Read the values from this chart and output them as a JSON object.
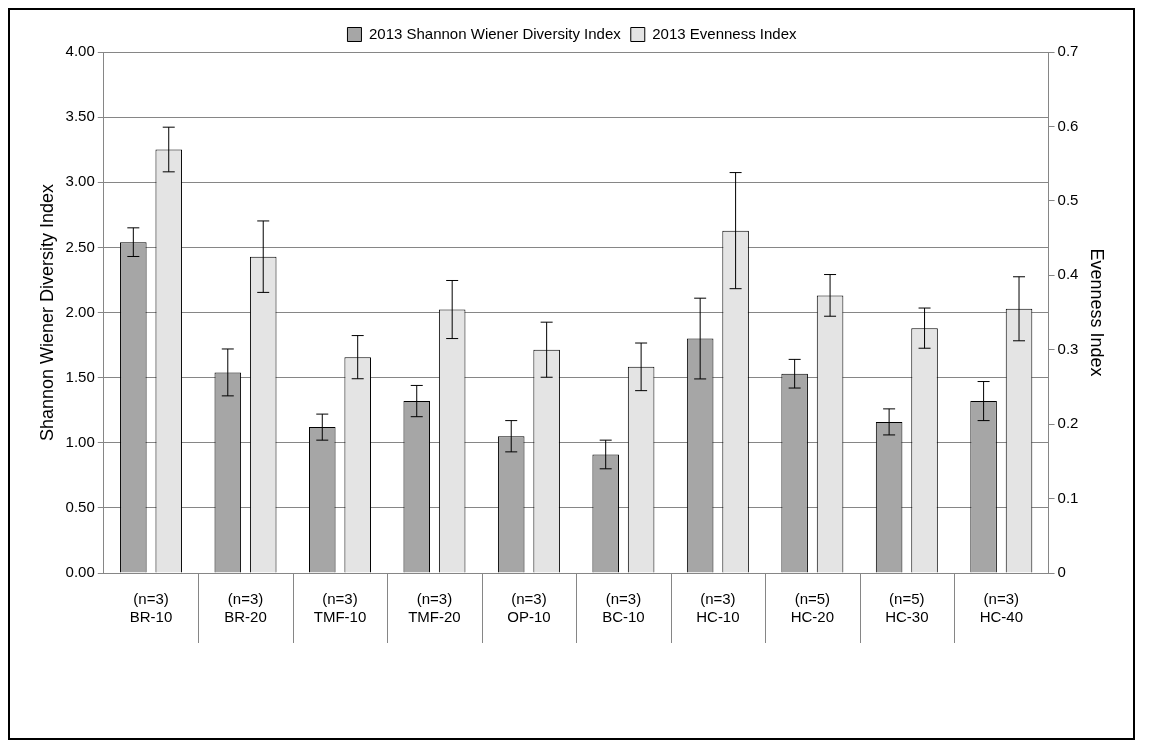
{
  "chart_data": {
    "type": "bar",
    "categories": [
      "(n=3)\nBR-10",
      "(n=3)\nBR-20",
      "(n=3)\nTMF-10",
      "(n=3)\nTMF-20",
      "(n=3)\nOP-10",
      "(n=3)\nBC-10",
      "(n=3)\nHC-10",
      "(n=5)\nHC-20",
      "(n=5)\nHC-30",
      "(n=3)\nHC-40"
    ],
    "series": [
      {
        "name": "2013 Shannon Wiener Diversity Index",
        "color": "#a6a6a6",
        "values": [
          2.54,
          1.54,
          1.12,
          1.32,
          1.05,
          0.91,
          1.8,
          1.53,
          1.16,
          1.32
        ],
        "errors": [
          0.11,
          0.18,
          0.1,
          0.12,
          0.12,
          0.11,
          0.31,
          0.11,
          0.1,
          0.15
        ]
      },
      {
        "name": "2013 Evenness Index",
        "color": "#e4e4e4",
        "axis": "y2",
        "values": [
          0.569,
          0.425,
          0.29,
          0.354,
          0.3,
          0.277,
          0.46,
          0.373,
          0.329,
          0.355
        ],
        "errors": [
          0.03,
          0.048,
          0.029,
          0.039,
          0.037,
          0.032,
          0.078,
          0.028,
          0.027,
          0.043
        ]
      }
    ],
    "ylabel": "Shannon Wiener Diversity Index",
    "y2label": "Evenness Index",
    "ylim": [
      0,
      4
    ],
    "yticks": [
      {
        "value": 0,
        "label": "0.00"
      },
      {
        "value": 0.5,
        "label": "0.50"
      },
      {
        "value": 1,
        "label": "1.00"
      },
      {
        "value": 1.5,
        "label": "1.50"
      },
      {
        "value": 2,
        "label": "2.00"
      },
      {
        "value": 2.5,
        "label": "2.50"
      },
      {
        "value": 3,
        "label": "3.00"
      },
      {
        "value": 3.5,
        "label": "3.50"
      },
      {
        "value": 4,
        "label": "4.00"
      }
    ],
    "y2lim": [
      0,
      0.7
    ],
    "y2ticks": [
      0,
      0.1,
      0.2,
      0.3,
      0.4,
      0.5,
      0.6,
      0.7
    ],
    "grid": "y",
    "legend": "top"
  }
}
